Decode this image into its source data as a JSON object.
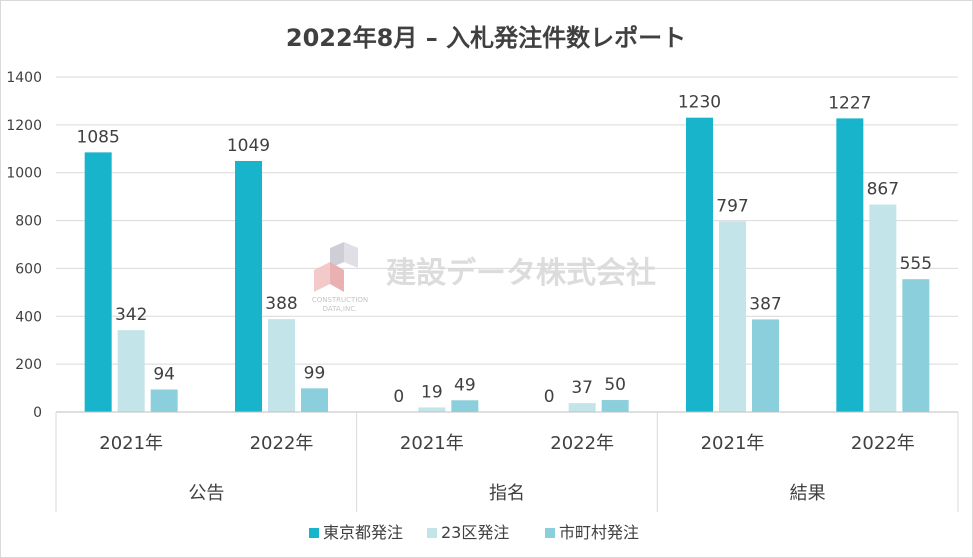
{
  "chart_data": {
    "type": "bar",
    "title": "2022年8月 – 入札発注件数レポート",
    "ylim": [
      0,
      1400
    ],
    "yticks": [
      0,
      200,
      400,
      600,
      800,
      1000,
      1200,
      1400
    ],
    "groups": [
      {
        "name": "公告",
        "categories": [
          "2021年",
          "2022年"
        ]
      },
      {
        "name": "指名",
        "categories": [
          "2021年",
          "2022年"
        ]
      },
      {
        "name": "結果",
        "categories": [
          "2021年",
          "2022年"
        ]
      }
    ],
    "series": [
      {
        "name": "東京都発注",
        "color": "#17b4cc",
        "values": [
          1085,
          1049,
          0,
          0,
          1230,
          1227
        ]
      },
      {
        "name": "23区発注",
        "color": "#c3e4e9",
        "values": [
          342,
          388,
          19,
          37,
          797,
          867
        ]
      },
      {
        "name": "市町村発注",
        "color": "#8ccfdc",
        "values": [
          94,
          99,
          49,
          50,
          387,
          555
        ]
      }
    ],
    "grid": true,
    "legend": "bottom"
  },
  "watermark": {
    "name": "建設データ株式会社",
    "sub1": "CONSTRUCTION",
    "sub2": "DATA,INC."
  }
}
